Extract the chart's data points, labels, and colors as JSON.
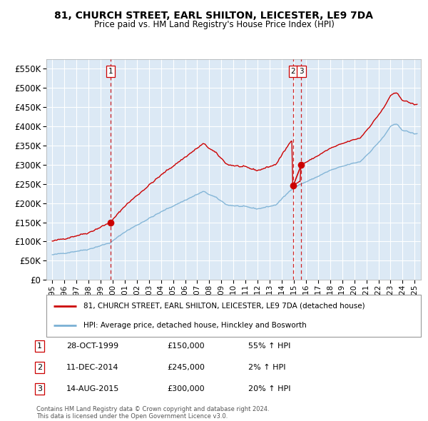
{
  "title": "81, CHURCH STREET, EARL SHILTON, LEICESTER, LE9 7DA",
  "subtitle": "Price paid vs. HM Land Registry's House Price Index (HPI)",
  "legend_line1": "81, CHURCH STREET, EARL SHILTON, LEICESTER, LE9 7DA (detached house)",
  "legend_line2": "HPI: Average price, detached house, Hinckley and Bosworth",
  "transactions": [
    {
      "num": 1,
      "date": "28-OCT-1999",
      "date_x": 1999.82,
      "price": 150000,
      "label": "55% ↑ HPI"
    },
    {
      "num": 2,
      "date": "11-DEC-2014",
      "date_x": 2014.94,
      "price": 245000,
      "label": "2% ↑ HPI"
    },
    {
      "num": 3,
      "date": "14-AUG-2015",
      "date_x": 2015.62,
      "price": 300000,
      "label": "20% ↑ HPI"
    }
  ],
  "footer1": "Contains HM Land Registry data © Crown copyright and database right 2024.",
  "footer2": "This data is licensed under the Open Government Licence v3.0.",
  "red_color": "#cc0000",
  "blue_color": "#7ab0d4",
  "bg_color": "#dce9f5",
  "grid_color": "#ffffff",
  "yticks": [
    0,
    50000,
    100000,
    150000,
    200000,
    250000,
    300000,
    350000,
    400000,
    450000,
    500000,
    550000
  ],
  "ylim": [
    0,
    575000
  ],
  "xlim_start": 1994.5,
  "xlim_end": 2025.5
}
